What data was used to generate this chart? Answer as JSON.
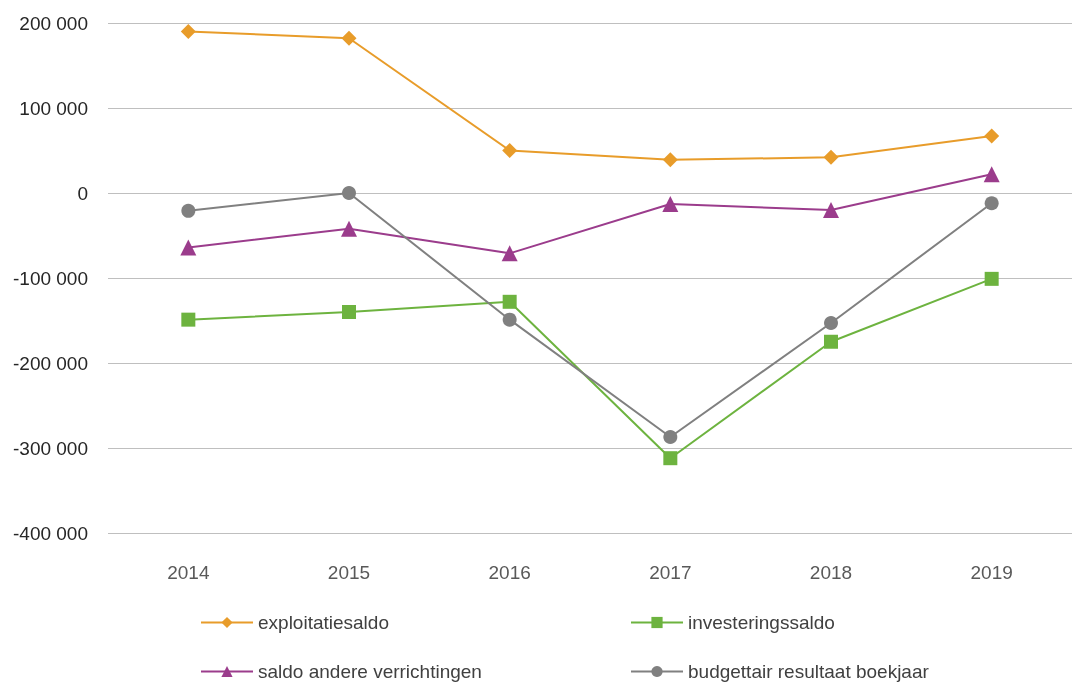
{
  "chart_data": {
    "type": "line",
    "categories": [
      "2014",
      "2015",
      "2016",
      "2017",
      "2018",
      "2019"
    ],
    "series": [
      {
        "name": "exploitatiesaldo",
        "color": "#e89c2a",
        "marker": "diamond",
        "values": [
          190000,
          182000,
          50000,
          39000,
          42000,
          67000
        ]
      },
      {
        "name": "investeringssaldo",
        "color": "#6db33f",
        "marker": "square",
        "values": [
          -149000,
          -140000,
          -128000,
          -312000,
          -175000,
          -101000
        ]
      },
      {
        "name": "saldo andere verrichtingen",
        "color": "#9b3c8c",
        "marker": "triangle",
        "values": [
          -64000,
          -42000,
          -71000,
          -13000,
          -20000,
          22000
        ]
      },
      {
        "name": "budgettair resultaat boekjaar",
        "color": "#808080",
        "marker": "circle",
        "values": [
          -21000,
          0,
          -149000,
          -287000,
          -153000,
          -12000
        ]
      }
    ],
    "ylim": [
      -400000,
      200000
    ],
    "yticks": [
      {
        "value": -400000,
        "label": "-400 000"
      },
      {
        "value": -300000,
        "label": "-300 000"
      },
      {
        "value": -200000,
        "label": "-200 000"
      },
      {
        "value": -100000,
        "label": "-100 000"
      },
      {
        "value": 0,
        "label": "0"
      },
      {
        "value": 100000,
        "label": "100 000"
      },
      {
        "value": 200000,
        "label": "200 000"
      }
    ],
    "grid": "y",
    "legend": "bottom",
    "line_style": "solid"
  }
}
